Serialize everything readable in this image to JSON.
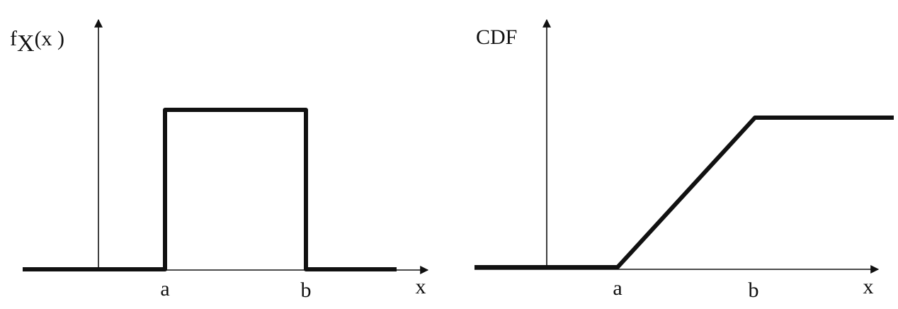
{
  "chart_data": [
    {
      "type": "line",
      "ylabel": {
        "base": "f",
        "sub": "X",
        "arg": "(x )"
      },
      "xlabel": "x",
      "x_ticks": [
        "a",
        "b"
      ],
      "xlim": [
        -1,
        2
      ],
      "ylim": [
        0,
        1.4
      ],
      "series": [
        {
          "x": [
            -1,
            0,
            0,
            1,
            1,
            2
          ],
          "y": [
            0,
            0,
            1,
            1,
            0,
            0
          ]
        }
      ]
    },
    {
      "type": "line",
      "ylabel": "CDF",
      "xlabel": "x",
      "x_ticks": [
        "a",
        "b"
      ],
      "xlim": [
        -1,
        2
      ],
      "ylim": [
        0,
        1.4
      ],
      "series": [
        {
          "x": [
            -1,
            0,
            1,
            2
          ],
          "y": [
            0,
            0,
            1,
            1
          ]
        }
      ]
    }
  ],
  "colors": {
    "line": "#111111",
    "axis": "#111111"
  }
}
